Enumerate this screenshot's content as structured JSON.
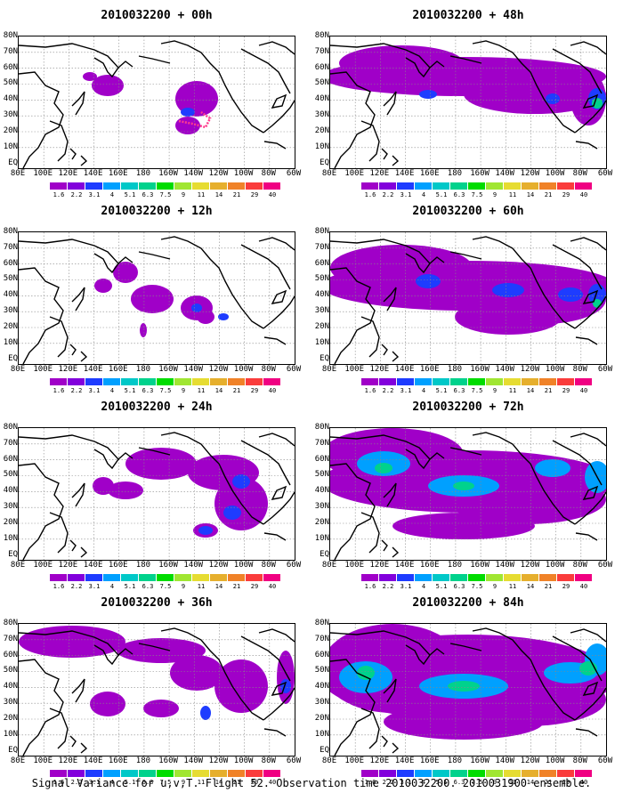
{
  "panels": [
    {
      "title": "2010032200 + 00h",
      "intensity": 0
    },
    {
      "title": "2010032200 + 12h",
      "intensity": 1
    },
    {
      "title": "2010032200 + 24h",
      "intensity": 2
    },
    {
      "title": "2010032200 + 36h",
      "intensity": 3
    },
    {
      "title": "2010032200 + 48h",
      "intensity": 4
    },
    {
      "title": "2010032200 + 60h",
      "intensity": 5
    },
    {
      "title": "2010032200 + 72h",
      "intensity": 6
    },
    {
      "title": "2010032200 + 84h",
      "intensity": 7
    }
  ],
  "lat_labels": [
    "80N",
    "70N",
    "60N",
    "50N",
    "40N",
    "30N",
    "20N",
    "10N",
    "EQ"
  ],
  "lon_labels": [
    "80E",
    "100E",
    "120E",
    "140E",
    "160E",
    "180",
    "160W",
    "140W",
    "120W",
    "100W",
    "80W",
    "60W"
  ],
  "colorbar": {
    "levels": [
      "1.6",
      "2.2",
      "3.1",
      "4",
      "5.1",
      "6.3",
      "7.5",
      "9",
      "11",
      "14",
      "21",
      "29",
      "40"
    ],
    "colors": [
      "#a000c8",
      "#8200dc",
      "#1e3cff",
      "#00a0ff",
      "#00c8c8",
      "#00d28c",
      "#00dc00",
      "#a0e632",
      "#e6dc32",
      "#e6af2d",
      "#f08228",
      "#fa3c3c",
      "#f00082"
    ]
  },
  "caption": "Signal Variance for u,v,T. Flight 52. Observation time 2010032200. 2010031900 ensemble."
}
